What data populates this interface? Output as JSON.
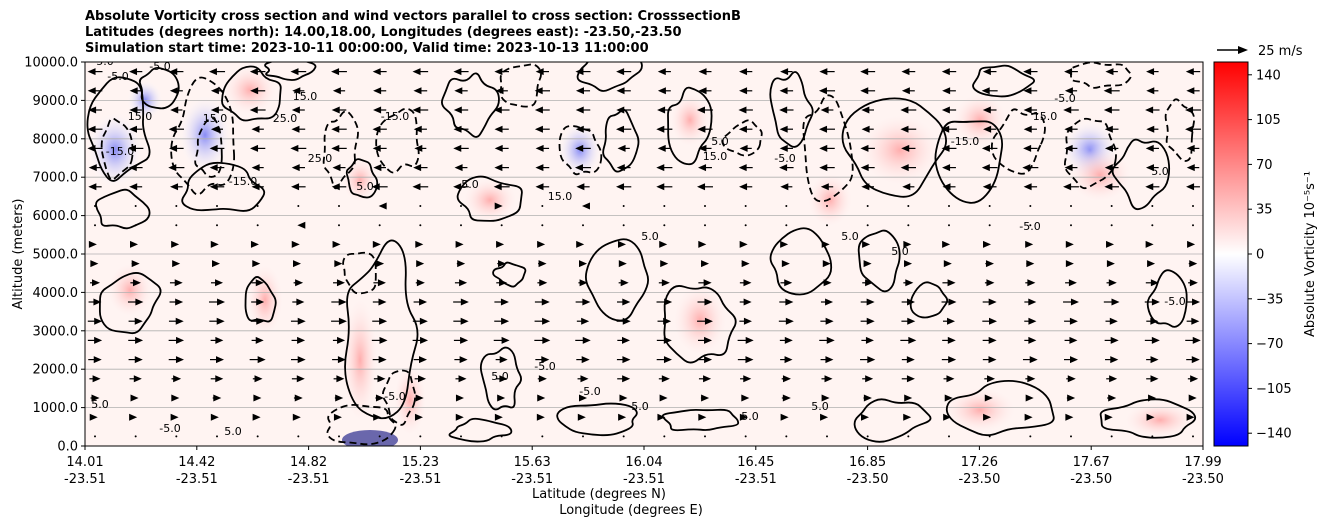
{
  "chart_data": {
    "type": "heatmap",
    "title": [
      "Absolute Vorticity cross section and wind vectors parallel to cross section: CrosssectionB",
      "Latitudes (degrees north): 14.00,18.00, Longitudes (degrees east): -23.50,-23.50",
      "Simulation start time: 2023-10-11 00:00:00, Valid time: 2023-10-13 11:00:00"
    ],
    "xlabel": [
      "Latitude (degrees N)",
      "Longitude (degrees E)"
    ],
    "ylabel": "Altitude (meters)",
    "x_ticks": [
      {
        "lat": "14.01",
        "lon": "-23.51"
      },
      {
        "lat": "14.42",
        "lon": "-23.51"
      },
      {
        "lat": "14.82",
        "lon": "-23.51"
      },
      {
        "lat": "15.23",
        "lon": "-23.51"
      },
      {
        "lat": "15.63",
        "lon": "-23.51"
      },
      {
        "lat": "16.04",
        "lon": "-23.51"
      },
      {
        "lat": "16.45",
        "lon": "-23.51"
      },
      {
        "lat": "16.85",
        "lon": "-23.50"
      },
      {
        "lat": "17.26",
        "lon": "-23.50"
      },
      {
        "lat": "17.67",
        "lon": "-23.50"
      },
      {
        "lat": "17.99",
        "lon": "-23.50"
      }
    ],
    "y_ticks": [
      "0.0",
      "1000.0",
      "2000.0",
      "3000.0",
      "4000.0",
      "5000.0",
      "6000.0",
      "7000.0",
      "8000.0",
      "9000.0",
      "10000.0"
    ],
    "ylim": [
      0,
      10000
    ],
    "grid": "horizontal",
    "colorbar": {
      "label": "Absolute Vorticity 10⁻⁵s⁻¹",
      "ticks": [
        "140",
        "105",
        "70",
        "35",
        "0",
        "−35",
        "−70",
        "−105",
        "−140"
      ],
      "range": [
        -150,
        150
      ],
      "colors": {
        "low": "#0000ff",
        "mid": "#ffffff",
        "high": "#ff0000"
      }
    },
    "quiver_key": {
      "label": "25 m/s"
    },
    "contour_labels": [
      "5.0",
      "-5.0",
      "15.0",
      "-15.0",
      "25.0",
      "5.0",
      "-5.0",
      "15.0",
      "-15.0",
      "5.0",
      "-5.0",
      "15.0",
      "-15.0",
      "25.0",
      "5.0",
      "5.0",
      "-5.0",
      "15.0",
      "5.0",
      "-5.0",
      "5.0",
      "15.0",
      "-15.0",
      "5.0",
      "-5.0",
      "15.0",
      "5.0",
      "-5.0",
      "5.0",
      "-5.0",
      "5.0",
      "5.0",
      "-5.0",
      "5.0",
      "5.0",
      "-5.0"
    ],
    "wind_rows": [
      {
        "alt": 9750,
        "u": -1
      },
      {
        "alt": 9250,
        "u": -1
      },
      {
        "alt": 8750,
        "u": -1
      },
      {
        "alt": 8250,
        "u": -1
      },
      {
        "alt": 7750,
        "u": -1
      },
      {
        "alt": 7250,
        "u": -1
      },
      {
        "alt": 6750,
        "u": -1
      },
      {
        "alt": 6250,
        "u": 0
      },
      {
        "alt": 5750,
        "u": 0
      },
      {
        "alt": 5250,
        "u": 0.3
      },
      {
        "alt": 4750,
        "u": 0.5
      },
      {
        "alt": 4250,
        "u": 0.8
      },
      {
        "alt": 3750,
        "u": 1
      },
      {
        "alt": 3250,
        "u": 1
      },
      {
        "alt": 2750,
        "u": 1
      },
      {
        "alt": 2250,
        "u": 1
      },
      {
        "alt": 1750,
        "u": 0.8
      },
      {
        "alt": 1250,
        "u": 0.5
      },
      {
        "alt": 750,
        "u": 0.3
      },
      {
        "alt": 250,
        "u": 0
      }
    ]
  }
}
